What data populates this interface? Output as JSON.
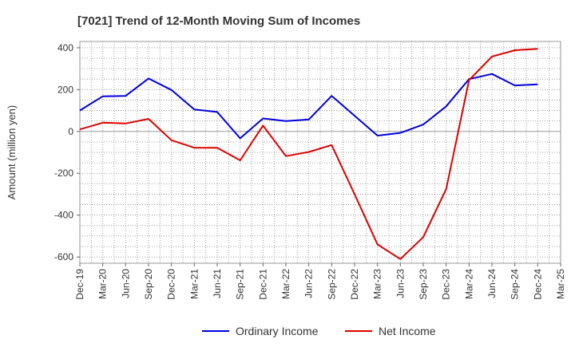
{
  "chart_data": {
    "type": "line",
    "title": "[7021]  Trend of 12-Month Moving Sum of Incomes",
    "xlabel": "",
    "ylabel": "Amount (million yen)",
    "ylim": [
      -630,
      430
    ],
    "yticks": [
      400,
      200,
      0,
      -200,
      -400,
      -600
    ],
    "grid": true,
    "legend_position": "bottom",
    "categories": [
      "Dec-19",
      "Mar-20",
      "Jun-20",
      "Sep-20",
      "Dec-20",
      "Mar-21",
      "Jun-21",
      "Sep-21",
      "Dec-21",
      "Mar-22",
      "Jun-22",
      "Sep-22",
      "Dec-22",
      "Mar-23",
      "Jun-23",
      "Sep-23",
      "Dec-23",
      "Mar-24",
      "Jun-24",
      "Sep-24",
      "Dec-24",
      "Mar-25"
    ],
    "series": [
      {
        "name": "Ordinary Income",
        "color": "#0000dd",
        "values": [
          100,
          168,
          170,
          253,
          198,
          105,
          93,
          -33,
          62,
          50,
          57,
          170,
          75,
          -20,
          -7,
          33,
          120,
          250,
          275,
          220,
          225,
          null
        ]
      },
      {
        "name": "Net Income",
        "color": "#dd0000",
        "values": [
          10,
          42,
          38,
          60,
          -42,
          -78,
          -78,
          -138,
          28,
          -118,
          -98,
          -65,
          -300,
          -540,
          -610,
          -505,
          -275,
          245,
          358,
          388,
          395,
          null
        ]
      }
    ]
  }
}
